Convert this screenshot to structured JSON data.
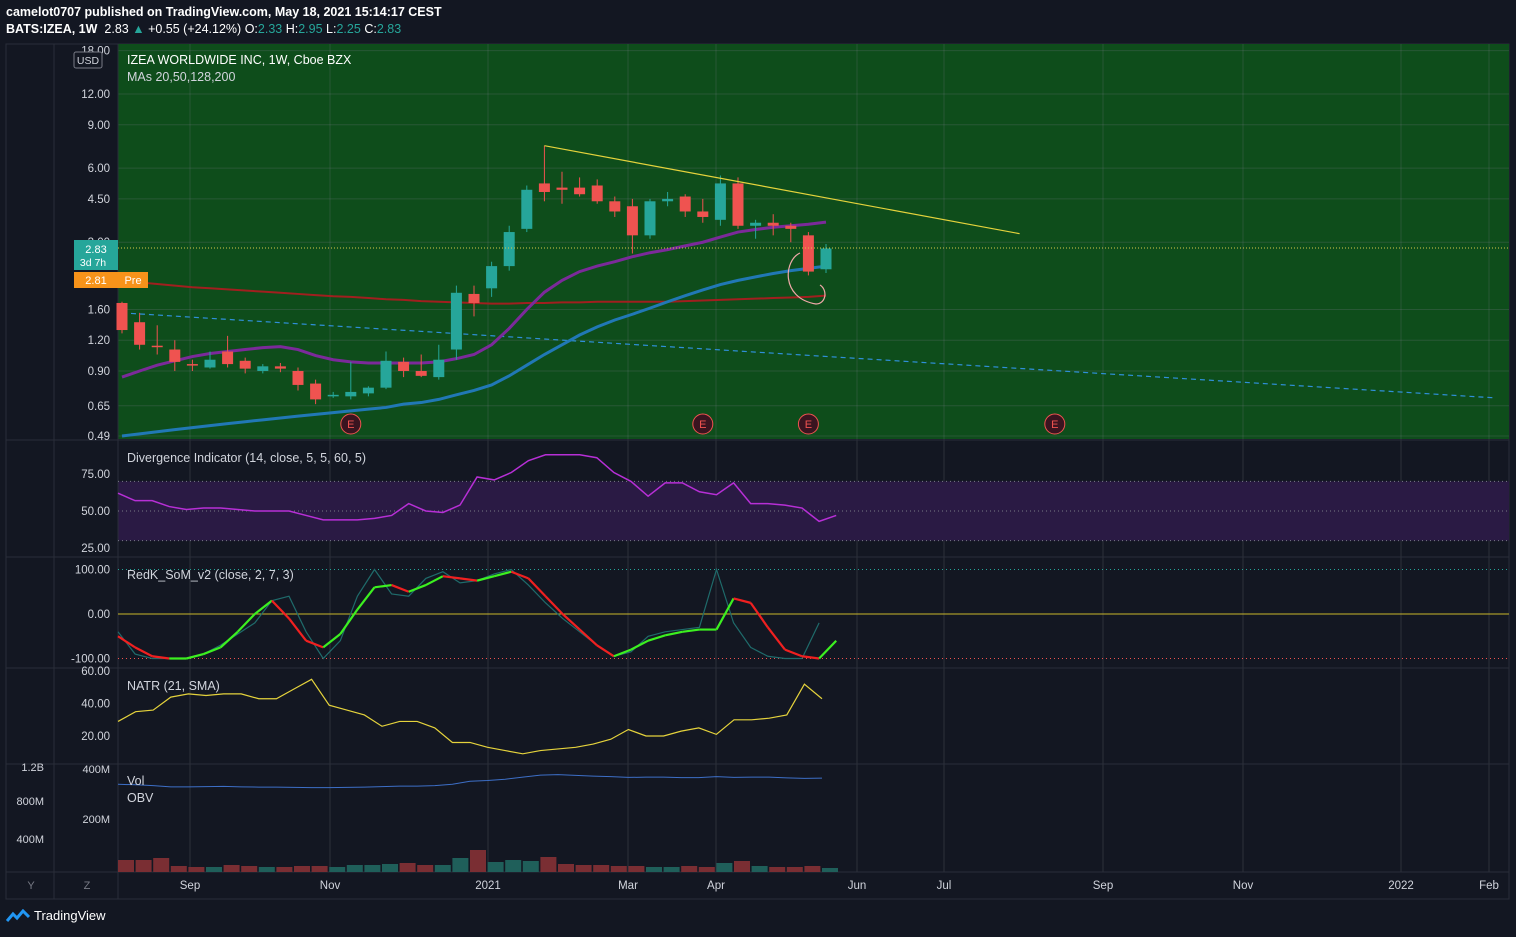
{
  "header": {
    "line1": "camelot0707 published on TradingView.com, May 18, 2021 15:14:17 CEST",
    "symbol": "BATS:IZEA, 1W",
    "last": "2.83",
    "change": "+0.55 (+24.12%)",
    "o_label": "O:",
    "o": "2.33",
    "h_label": "H:",
    "h": "2.95",
    "l_label": "L:",
    "l": "2.25",
    "c_label": "C:",
    "c": "2.83"
  },
  "main_pane": {
    "title": "IZEA WORLDWIDE INC, 1W, Cboe BZX",
    "ma_label": "MAs 20,50,128,200",
    "currency": "USD",
    "price_tag": "2.83",
    "countdown": "3d 7h",
    "pre_tag": "2.81",
    "pre_label": "Pre",
    "earnings_marker": "E"
  },
  "panes": {
    "divergence": "Divergence Indicator (14, close, 5, 5, 60, 5)",
    "som": "RedK_SoM_v2 (close, 2, 7, 3)",
    "natr": "NATR (21, SMA)",
    "vol": "Vol",
    "obv": "OBV"
  },
  "footer": {
    "brand": "TradingView",
    "y_btn": "Y",
    "z_btn": "Z"
  },
  "colors": {
    "bg": "#131722",
    "main_bg": "#0d4a1a",
    "up": "#26a69a",
    "down": "#ef5350",
    "ma_blue": "#2178b5",
    "ma_purple": "#7b2a9a",
    "ma_red": "#a11f1f",
    "trend": "#e5d33c",
    "div_line": "#b72fd6",
    "natr": "#e5d33c"
  },
  "chart_data": [
    {
      "type": "candlestick",
      "title": "IZEA WORLDWIDE INC, 1W, Cboe BZX",
      "log_scale": true,
      "y_ticks": [
        "18.00",
        "12.00",
        "9.00",
        "6.00",
        "4.50",
        "3.00",
        "1.60",
        "1.20",
        "0.90",
        "0.65",
        "0.49"
      ],
      "x_ticks": [
        "Sep",
        "Nov",
        "2021",
        "Mar",
        "Apr",
        "Jun",
        "Jul",
        "Sep",
        "Nov",
        "2022",
        "Feb"
      ],
      "candles": [
        {
          "o": 1.7,
          "h": 1.72,
          "l": 1.28,
          "c": 1.32
        },
        {
          "o": 1.42,
          "h": 1.55,
          "l": 1.1,
          "c": 1.15
        },
        {
          "o": 1.14,
          "h": 1.38,
          "l": 1.05,
          "c": 1.13
        },
        {
          "o": 1.1,
          "h": 1.2,
          "l": 0.9,
          "c": 0.98
        },
        {
          "o": 0.96,
          "h": 1.0,
          "l": 0.9,
          "c": 0.95
        },
        {
          "o": 0.93,
          "h": 1.08,
          "l": 0.92,
          "c": 1.0
        },
        {
          "o": 1.08,
          "h": 1.25,
          "l": 0.93,
          "c": 0.96
        },
        {
          "o": 0.99,
          "h": 1.02,
          "l": 0.88,
          "c": 0.92
        },
        {
          "o": 0.9,
          "h": 0.96,
          "l": 0.88,
          "c": 0.94
        },
        {
          "o": 0.94,
          "h": 0.97,
          "l": 0.89,
          "c": 0.92
        },
        {
          "o": 0.9,
          "h": 0.93,
          "l": 0.75,
          "c": 0.79
        },
        {
          "o": 0.8,
          "h": 0.83,
          "l": 0.66,
          "c": 0.69
        },
        {
          "o": 0.71,
          "h": 0.74,
          "l": 0.7,
          "c": 0.72
        },
        {
          "o": 0.71,
          "h": 0.98,
          "l": 0.69,
          "c": 0.74
        },
        {
          "o": 0.73,
          "h": 0.78,
          "l": 0.71,
          "c": 0.77
        },
        {
          "o": 0.77,
          "h": 1.08,
          "l": 0.76,
          "c": 0.99
        },
        {
          "o": 0.98,
          "h": 1.02,
          "l": 0.85,
          "c": 0.9
        },
        {
          "o": 0.9,
          "h": 1.05,
          "l": 0.85,
          "c": 0.86
        },
        {
          "o": 0.85,
          "h": 1.15,
          "l": 0.83,
          "c": 1.0
        },
        {
          "o": 1.1,
          "h": 2.0,
          "l": 1.0,
          "c": 1.87
        },
        {
          "o": 1.85,
          "h": 2.0,
          "l": 1.5,
          "c": 1.7
        },
        {
          "o": 1.95,
          "h": 2.5,
          "l": 1.8,
          "c": 2.4
        },
        {
          "o": 2.4,
          "h": 3.5,
          "l": 2.3,
          "c": 3.3
        },
        {
          "o": 3.4,
          "h": 5.1,
          "l": 3.3,
          "c": 4.9
        },
        {
          "o": 5.2,
          "h": 7.4,
          "l": 4.4,
          "c": 4.8
        },
        {
          "o": 5.0,
          "h": 5.8,
          "l": 4.3,
          "c": 4.9
        },
        {
          "o": 5.0,
          "h": 5.5,
          "l": 4.6,
          "c": 4.7
        },
        {
          "o": 5.1,
          "h": 5.4,
          "l": 4.3,
          "c": 4.4
        },
        {
          "o": 4.4,
          "h": 4.6,
          "l": 3.8,
          "c": 4.0
        },
        {
          "o": 4.2,
          "h": 4.5,
          "l": 2.7,
          "c": 3.2
        },
        {
          "o": 3.2,
          "h": 4.5,
          "l": 3.1,
          "c": 4.4
        },
        {
          "o": 4.4,
          "h": 4.8,
          "l": 4.2,
          "c": 4.5
        },
        {
          "o": 4.6,
          "h": 4.7,
          "l": 3.8,
          "c": 4.0
        },
        {
          "o": 4.0,
          "h": 4.5,
          "l": 3.6,
          "c": 3.8
        },
        {
          "o": 3.7,
          "h": 5.6,
          "l": 3.5,
          "c": 5.2
        },
        {
          "o": 5.2,
          "h": 5.5,
          "l": 3.4,
          "c": 3.5
        },
        {
          "o": 3.5,
          "h": 3.7,
          "l": 3.1,
          "c": 3.6
        },
        {
          "o": 3.6,
          "h": 3.9,
          "l": 3.2,
          "c": 3.5
        },
        {
          "o": 3.5,
          "h": 3.6,
          "l": 3.0,
          "c": 3.4
        },
        {
          "o": 3.2,
          "h": 3.3,
          "l": 2.2,
          "c": 2.28
        },
        {
          "o": 2.33,
          "h": 2.95,
          "l": 2.25,
          "c": 2.83
        }
      ],
      "ma_blue": [
        0.49,
        0.5,
        0.51,
        0.52,
        0.53,
        0.54,
        0.55,
        0.56,
        0.57,
        0.58,
        0.59,
        0.6,
        0.61,
        0.62,
        0.63,
        0.64,
        0.66,
        0.67,
        0.69,
        0.72,
        0.75,
        0.79,
        0.86,
        0.95,
        1.05,
        1.15,
        1.26,
        1.36,
        1.45,
        1.53,
        1.62,
        1.72,
        1.82,
        1.92,
        2.02,
        2.1,
        2.17,
        2.24,
        2.3,
        2.35,
        2.4
      ],
      "ma_purple": [
        0.85,
        0.9,
        0.95,
        0.99,
        1.03,
        1.06,
        1.08,
        1.1,
        1.12,
        1.13,
        1.1,
        1.04,
        1.0,
        0.98,
        0.97,
        0.97,
        0.97,
        0.97,
        0.98,
        1.01,
        1.05,
        1.15,
        1.34,
        1.6,
        1.88,
        2.1,
        2.28,
        2.4,
        2.5,
        2.62,
        2.72,
        2.8,
        2.9,
        3.0,
        3.15,
        3.3,
        3.38,
        3.45,
        3.5,
        3.55,
        3.62
      ],
      "ma_red": [
        2.1,
        2.06,
        2.03,
        2.0,
        1.97,
        1.95,
        1.93,
        1.91,
        1.89,
        1.87,
        1.85,
        1.83,
        1.81,
        1.8,
        1.78,
        1.76,
        1.75,
        1.73,
        1.72,
        1.71,
        1.7,
        1.69,
        1.69,
        1.7,
        1.7,
        1.71,
        1.71,
        1.72,
        1.72,
        1.72,
        1.72,
        1.72,
        1.73,
        1.74,
        1.75,
        1.76,
        1.77,
        1.78,
        1.79,
        1.8,
        1.82
      ],
      "trendline": {
        "from": {
          "x": 24,
          "y": 7.4
        },
        "to": {
          "x": 51,
          "y": 3.25
        }
      },
      "dashed_trendline": {
        "from": {
          "x": 0,
          "y": 1.55
        },
        "to": {
          "x": 78,
          "y": 0.7
        }
      },
      "earnings_markers": [
        13,
        33,
        39,
        53
      ],
      "last_price": 2.83
    },
    {
      "type": "line",
      "title": "Divergence Indicator (14, close, 5, 5, 60, 5)",
      "y_ticks": [
        "75.00",
        "50.00",
        "25.00"
      ],
      "band": [
        30,
        70
      ],
      "values": [
        62,
        57,
        57,
        53,
        51,
        52,
        52,
        51,
        50,
        50,
        50,
        47,
        44,
        44,
        44,
        45,
        47,
        55,
        50,
        49,
        54,
        73,
        71,
        76,
        84,
        88,
        88,
        88,
        86,
        76,
        70,
        60,
        69,
        69,
        63,
        61,
        69,
        55,
        55,
        54,
        52,
        43,
        47
      ]
    },
    {
      "type": "line",
      "title": "RedK_SoM_v2 (close, 2, 7, 3)",
      "y_ticks": [
        "100.00",
        "0.00",
        "-100.00"
      ],
      "values": [
        -50,
        -75,
        -95,
        -100,
        -100,
        -90,
        -75,
        -40,
        0,
        30,
        -10,
        -60,
        -75,
        -45,
        10,
        60,
        65,
        50,
        65,
        85,
        80,
        75,
        85,
        95,
        80,
        40,
        0,
        -35,
        -70,
        -95,
        -80,
        -60,
        -48,
        -40,
        -35,
        -35,
        35,
        25,
        -30,
        -80,
        -95,
        -100,
        -60
      ],
      "thin_values": [
        -40,
        -90,
        -100,
        -100,
        -100,
        -90,
        -70,
        -45,
        -20,
        30,
        40,
        -40,
        -100,
        -60,
        40,
        100,
        45,
        40,
        80,
        95,
        70,
        75,
        90,
        100,
        65,
        25,
        -10,
        -40,
        -70,
        -95,
        -85,
        -50,
        -40,
        -35,
        -30,
        100,
        -20,
        -75,
        -95,
        -100,
        -100,
        -20
      ]
    },
    {
      "type": "line",
      "title": "NATR (21, SMA)",
      "y_ticks": [
        "60.00",
        "40.00",
        "20.00"
      ],
      "values": [
        29,
        35,
        36,
        44,
        46,
        45,
        46,
        46,
        43,
        43,
        49,
        55,
        39,
        36,
        33,
        26,
        29,
        29,
        25,
        16,
        16,
        13,
        11,
        9,
        11,
        12,
        13,
        15,
        18,
        24,
        20,
        20,
        23,
        25,
        21,
        30,
        30,
        31,
        33,
        52,
        43
      ]
    },
    {
      "type": "bar",
      "title": "Vol",
      "y_ticks_left": [
        "1.2B",
        "800M",
        "400M"
      ],
      "y_ticks_right": [
        "400M",
        "200M"
      ],
      "volume": [
        12,
        12,
        14,
        6,
        5,
        5,
        7,
        6,
        5,
        5,
        6,
        6,
        5,
        7,
        7,
        8,
        9,
        7,
        7,
        14,
        22,
        10,
        12,
        11,
        15,
        8,
        7,
        7,
        6,
        6,
        5,
        5,
        6,
        5,
        9,
        11,
        6,
        5,
        5,
        6,
        4
      ],
      "obv_label": "OBV",
      "obv": [
        340,
        338,
        335,
        330,
        330,
        331,
        332,
        330,
        329,
        329,
        328,
        327,
        327,
        328,
        329,
        331,
        333,
        333,
        335,
        340,
        352,
        355,
        360,
        368,
        376,
        378,
        375,
        372,
        370,
        367,
        368,
        368,
        366,
        366,
        370,
        367,
        368,
        368,
        365,
        363,
        364
      ]
    }
  ]
}
